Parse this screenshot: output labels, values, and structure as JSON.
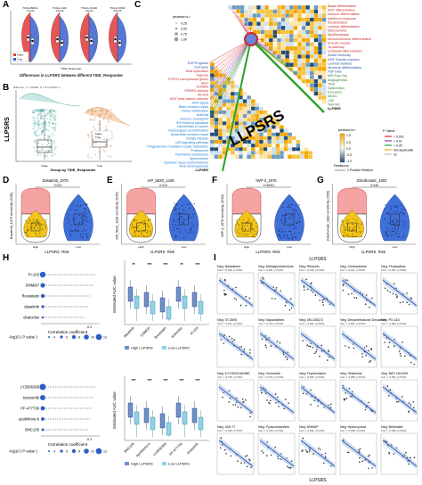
{
  "panels": {
    "A": "A",
    "B": "B",
    "C": "C",
    "D": "D",
    "E": "E",
    "F": "F",
    "G": "G",
    "H": "H",
    "I": "I"
  },
  "A": {
    "title": "Differences in LLPSRS between different TIDE_Responder",
    "xlabel": "TIDE_Responder",
    "group_labels": [
      "TCGA-BRCA",
      "TCGA-LIHC",
      "TCGA-COAD",
      "TCGA-STAD"
    ],
    "legend": [
      "False",
      "True"
    ],
    "colors": {
      "false": "#e03a3a",
      "true": "#3a5fcf"
    },
    "pvals": [
      "7.7e-04",
      "2.5e-03",
      "1.6e-04",
      "8.6e-05"
    ]
  },
  "B": {
    "ylabel": "LLPSRS",
    "xlabel": "Group by TIDE_Responder",
    "subtitle": "Wilcoxon, p = 0.0026; N = 8 LLPSRS 1 ...",
    "legend": [
      "False",
      "True"
    ],
    "categories": [
      "False",
      "True"
    ]
  },
  "C": {
    "left_labels": [
      "EGFR ligands",
      "Cell cycle",
      "DNA replication",
      "Hypoxia",
      "FGFR3 coexpressed genes",
      "IDH1",
      "KOMBS",
      "PPARG network",
      "VEGFA",
      "WNT beta catenin network",
      "AFM signal",
      "Base excision repair",
      "Purine metabolism",
      "Antiviral",
      "Immune checkpoint",
      "IFN Gamma signature",
      "MicroRNAs in cancer",
      "Homologous recombination",
      "Nucleotide excision repair",
      "Oocyte meiosis",
      "p53 signaling pathway",
      "Progesterone mediated oocyte maturation",
      "Proteasome",
      "Pyrimidine metabolism",
      "Spliceosome",
      "Systemic lupus erythematosus",
      "Viral carcinogenesis",
      "LLPSRS"
    ],
    "right_labels": [
      "Basal differentiation",
      "EMT differentiation",
      "Immune differentiation",
      "Interferon response",
      "Keratinization",
      "Luminal differentiation",
      "Mitochondria",
      "Myofibroblasts",
      "Neuroendocrine differentiation",
      "Smooth muscle",
      "Ta pathway",
      "Urothelial differentiation",
      "Innate immunity",
      "EMT Claudin markers",
      "Luminal markers",
      "Neuronal differentiation",
      "TGF beta",
      "MSI Expr Sig",
      "Angiogenesis",
      "TIDE",
      "Dysfunction",
      "Exclusion",
      "MDSC",
      "CAF",
      "TAM M2",
      "LLPSRS"
    ],
    "big_label": "LLPSRS",
    "pearson_title": "pearson's r",
    "pearson_vals": [
      "0.25",
      "0.50",
      "0.75",
      "1.00"
    ],
    "colorbar_title": "pearson's r",
    "colorbar_ticks": [
      "1.0",
      "0.5",
      "0.0",
      "-0.5",
      "-1.0"
    ],
    "relations_title": "Relations",
    "relations": [
      "1 Positive Relation",
      "2 Negative Relation"
    ],
    "pvalue_title": "P Value",
    "pvalue_items": [
      "< 0.001",
      "< 0.01",
      "< 0.05",
      "Not Applicable",
      "ns"
    ],
    "pvalue_colors": [
      "#d62728",
      "#8e44ad",
      "#2ca02c",
      "#ff9f1c",
      "#bdbdbd"
    ]
  },
  "violins": [
    {
      "title": "Dasatinib_1079",
      "ylabel": "Dasatinib_1079 sensitivity (IC50)",
      "p": "0.013",
      "xlabel": "LLPSRS_Risk",
      "cats": [
        "High",
        "Low"
      ]
    },
    {
      "title": "IAP_5620_1428",
      "ylabel": "IAP_5620_1428 sensitivity (IC50)",
      "p": "0.014",
      "xlabel": "LLPSRS_Risk",
      "cats": [
        "High",
        "Low"
      ]
    },
    {
      "title": "IWP-2_1576",
      "ylabel": "IWP-2_1576 sensitivity (IC50)",
      "p": "0.00041",
      "xlabel": "LLPSRS_Risk",
      "cats": [
        "High",
        "Low"
      ]
    },
    {
      "title": "Zoledronate_1802",
      "ylabel": "Zoledronate_1802 sensitivity (IC50)",
      "p": "0.046",
      "xlabel": "LLPSRS_Risk",
      "cats": [
        "High",
        "Low"
      ]
    }
  ],
  "H": {
    "top_drugs": [
      "PI-103",
      "DNMDP",
      "fluvastatin",
      "dasatinib",
      "obatoclax"
    ],
    "bot_drugs": [
      "LY2606368",
      "tozasertib",
      "PF-477736",
      "epothilone-b",
      "BNC105"
    ],
    "corr_xlabel": "Correlation coefficient",
    "corr_tick": "-0.3",
    "bubble_label": "-log10 ( P value )",
    "bubble_ticks": [
      "4",
      "6",
      "8",
      "10",
      "12"
    ],
    "auc_ylabel": "Estimated AUC value",
    "auc_top_cats": [
      "dasatinib",
      "DNMDP",
      "fluvastatin",
      "obatoclax",
      "PI-103"
    ],
    "auc_bot_cats": [
      "BNC105",
      "epothilone-b",
      "LY2606368",
      "PF-477736",
      "tozasertib"
    ],
    "sig_top": [
      "**",
      "***",
      "***",
      "**",
      "***"
    ],
    "sig_bot": [
      "***",
      "***",
      "***",
      "***",
      "***"
    ],
    "legend": [
      "High LLPSRS",
      "Low LLPSRS"
    ],
    "auc_ylim_top": [
      "0.2",
      "0.4",
      "0.6",
      "0.8"
    ]
  },
  "I": {
    "title": "LLPSRS",
    "xlabel": "LLPSRS",
    "cells": [
      {
        "t": "Neg: Nelarabine",
        "s": "Corr = -0.430, p<0.001"
      },
      {
        "t": "Neg: Methylprednisolone",
        "s": "Corr = -0.361, p<0.001"
      },
      {
        "t": "Neg: Ribavirin",
        "s": "Corr = -0.340, p<0.001"
      },
      {
        "t": "Neg: Chelerythrine",
        "s": "Corr = -0.311, p<0.001"
      },
      {
        "t": "Neg: Fludarabine",
        "s": "Corr = -0.307, p<0.001"
      },
      {
        "t": "Neg: ST-3595",
        "s": "Corr = -0.421, p<0.001"
      },
      {
        "t": "Neg: Sapacitabine",
        "s": "Corr = -0.412, p<0.001"
      },
      {
        "t": "Neg: ZM-336372",
        "s": "Corr = -0.401, p<0.001"
      },
      {
        "t": "Neg: Dexamethasone Decadron",
        "s": "Corr = -0.397, p<0.001"
      },
      {
        "t": "Neg: PX-316",
        "s": "Corr = -0.383, p<0.001"
      },
      {
        "t": "Neg: 6-THIOGUANINE",
        "s": "Corr = -0.379, p<0.001"
      },
      {
        "t": "Neg: Vorinostat",
        "s": "Corr = -0.370, p<0.001"
      },
      {
        "t": "Neg: Fluphenazine",
        "s": "Corr = -0.366, p<0.001"
      },
      {
        "t": "Neg: Obatoclax",
        "s": "Corr = -0.358, p<0.001"
      },
      {
        "t": "Neg: BAY-1161909",
        "s": "Corr = -0.352, p<0.001"
      },
      {
        "t": "Neg: UMI-77",
        "s": "Corr = -0.349, p<0.001"
      },
      {
        "t": "Neg: Pyrazoloacridine",
        "s": "Corr = -0.344, p<0.001"
      },
      {
        "t": "Neg: DNMDP",
        "s": "Corr = -0.341, p<0.001"
      },
      {
        "t": "Neg: Hydroxyurea",
        "s": "Corr = -0.338, p<0.001"
      },
      {
        "t": "Neg: Belinostat",
        "s": "Corr = -0.335, p<0.001"
      }
    ]
  }
}
